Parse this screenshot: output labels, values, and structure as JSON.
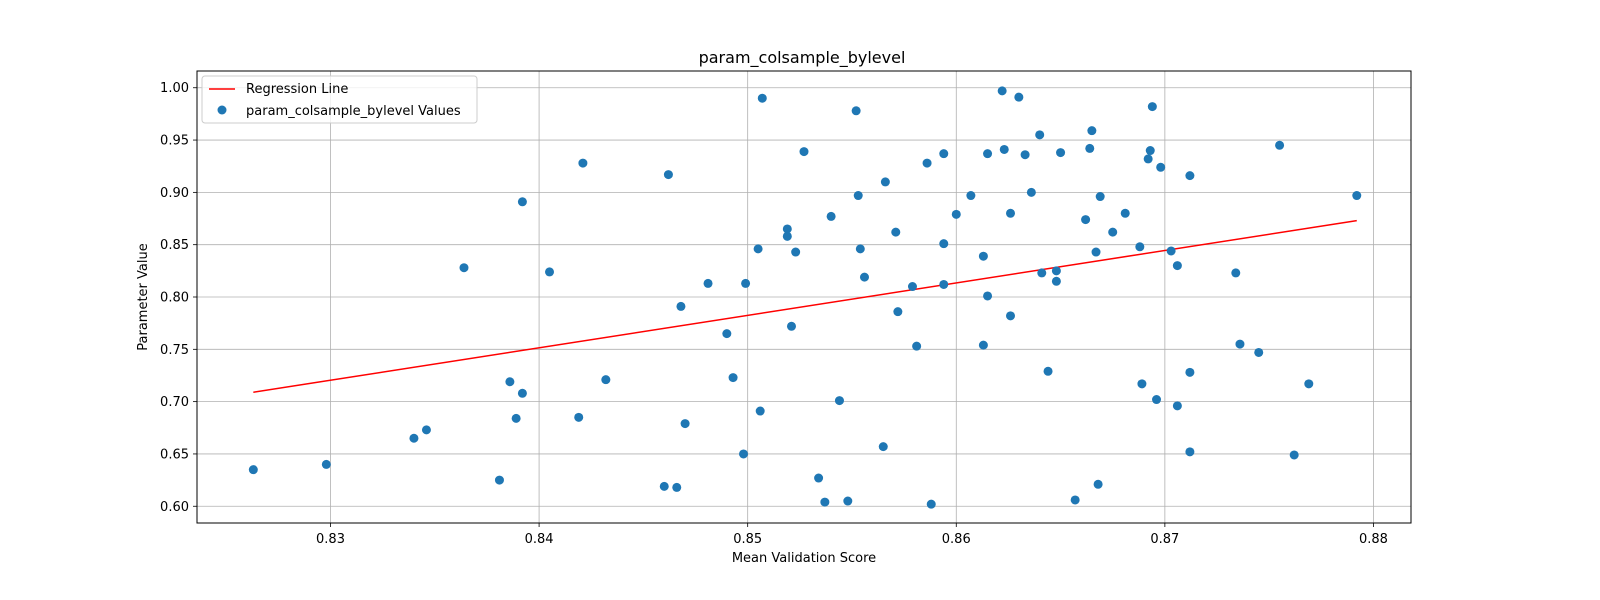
{
  "chart_data": {
    "type": "scatter",
    "title": "param_colsample_bylevel",
    "xlabel": "Mean Validation Score",
    "ylabel": "Parameter Value",
    "xlim": [
      0.8236,
      0.8818
    ],
    "ylim": [
      0.584,
      1.016
    ],
    "xticks": [
      0.83,
      0.84,
      0.85,
      0.86,
      0.87,
      0.88
    ],
    "xtick_labels": [
      "0.83",
      "0.84",
      "0.85",
      "0.86",
      "0.87",
      "0.88"
    ],
    "yticks": [
      0.6,
      0.65,
      0.7,
      0.75,
      0.8,
      0.85,
      0.9,
      0.95,
      1.0
    ],
    "ytick_labels": [
      "0.60",
      "0.65",
      "0.70",
      "0.75",
      "0.80",
      "0.85",
      "0.90",
      "0.95",
      "1.00"
    ],
    "grid": true,
    "legend_position": "top-left",
    "series": [
      {
        "name": "Regression Line",
        "kind": "line",
        "color": "#ff0000",
        "points": [
          [
            0.8263,
            0.709
          ],
          [
            0.8792,
            0.873
          ]
        ]
      },
      {
        "name": "param_colsample_bylevel Values",
        "kind": "scatter",
        "color": "#1f77b4",
        "points": [
          [
            0.8263,
            0.635
          ],
          [
            0.8298,
            0.64
          ],
          [
            0.834,
            0.665
          ],
          [
            0.8346,
            0.673
          ],
          [
            0.8364,
            0.828
          ],
          [
            0.8381,
            0.625
          ],
          [
            0.8386,
            0.719
          ],
          [
            0.8389,
            0.684
          ],
          [
            0.8392,
            0.891
          ],
          [
            0.8392,
            0.708
          ],
          [
            0.8405,
            0.824
          ],
          [
            0.8419,
            0.685
          ],
          [
            0.8421,
            0.928
          ],
          [
            0.8432,
            0.721
          ],
          [
            0.846,
            0.619
          ],
          [
            0.8462,
            0.917
          ],
          [
            0.8466,
            0.618
          ],
          [
            0.8468,
            0.791
          ],
          [
            0.847,
            0.679
          ],
          [
            0.8481,
            0.813
          ],
          [
            0.849,
            0.765
          ],
          [
            0.8493,
            0.723
          ],
          [
            0.8498,
            0.65
          ],
          [
            0.8499,
            0.813
          ],
          [
            0.8505,
            0.846
          ],
          [
            0.8506,
            0.691
          ],
          [
            0.8507,
            0.99
          ],
          [
            0.8519,
            0.865
          ],
          [
            0.8519,
            0.858
          ],
          [
            0.8521,
            0.772
          ],
          [
            0.8523,
            0.843
          ],
          [
            0.8527,
            0.939
          ],
          [
            0.8534,
            0.627
          ],
          [
            0.8537,
            0.604
          ],
          [
            0.854,
            0.877
          ],
          [
            0.8544,
            0.701
          ],
          [
            0.8548,
            0.605
          ],
          [
            0.8552,
            0.978
          ],
          [
            0.8553,
            0.897
          ],
          [
            0.8554,
            0.846
          ],
          [
            0.8556,
            0.819
          ],
          [
            0.8565,
            0.657
          ],
          [
            0.8566,
            0.91
          ],
          [
            0.8571,
            0.862
          ],
          [
            0.8572,
            0.786
          ],
          [
            0.8579,
            0.81
          ],
          [
            0.8581,
            0.753
          ],
          [
            0.8586,
            0.928
          ],
          [
            0.8588,
            0.602
          ],
          [
            0.8594,
            0.937
          ],
          [
            0.8594,
            0.851
          ],
          [
            0.8594,
            0.812
          ],
          [
            0.86,
            0.879
          ],
          [
            0.8607,
            0.897
          ],
          [
            0.8613,
            0.839
          ],
          [
            0.8613,
            0.754
          ],
          [
            0.8615,
            0.937
          ],
          [
            0.8615,
            0.801
          ],
          [
            0.8622,
            0.997
          ],
          [
            0.8623,
            0.941
          ],
          [
            0.8626,
            0.88
          ],
          [
            0.8626,
            0.782
          ],
          [
            0.863,
            0.991
          ],
          [
            0.8633,
            0.936
          ],
          [
            0.8636,
            0.9
          ],
          [
            0.864,
            0.955
          ],
          [
            0.8641,
            0.823
          ],
          [
            0.8644,
            0.729
          ],
          [
            0.8648,
            0.825
          ],
          [
            0.8648,
            0.815
          ],
          [
            0.865,
            0.938
          ],
          [
            0.8657,
            0.606
          ],
          [
            0.8662,
            0.874
          ],
          [
            0.8664,
            0.942
          ],
          [
            0.8665,
            0.959
          ],
          [
            0.8667,
            0.843
          ],
          [
            0.8668,
            0.621
          ],
          [
            0.8669,
            0.896
          ],
          [
            0.8675,
            0.862
          ],
          [
            0.8681,
            0.88
          ],
          [
            0.8688,
            0.848
          ],
          [
            0.8689,
            0.717
          ],
          [
            0.8692,
            0.932
          ],
          [
            0.8693,
            0.94
          ],
          [
            0.8694,
            0.982
          ],
          [
            0.8696,
            0.702
          ],
          [
            0.8698,
            0.924
          ],
          [
            0.8703,
            0.844
          ],
          [
            0.8706,
            0.83
          ],
          [
            0.8706,
            0.696
          ],
          [
            0.8712,
            0.916
          ],
          [
            0.8712,
            0.728
          ],
          [
            0.8712,
            0.652
          ],
          [
            0.8734,
            0.823
          ],
          [
            0.8736,
            0.755
          ],
          [
            0.8745,
            0.747
          ],
          [
            0.8755,
            0.945
          ],
          [
            0.8762,
            0.649
          ],
          [
            0.8769,
            0.717
          ],
          [
            0.8792,
            0.897
          ]
        ]
      }
    ]
  }
}
